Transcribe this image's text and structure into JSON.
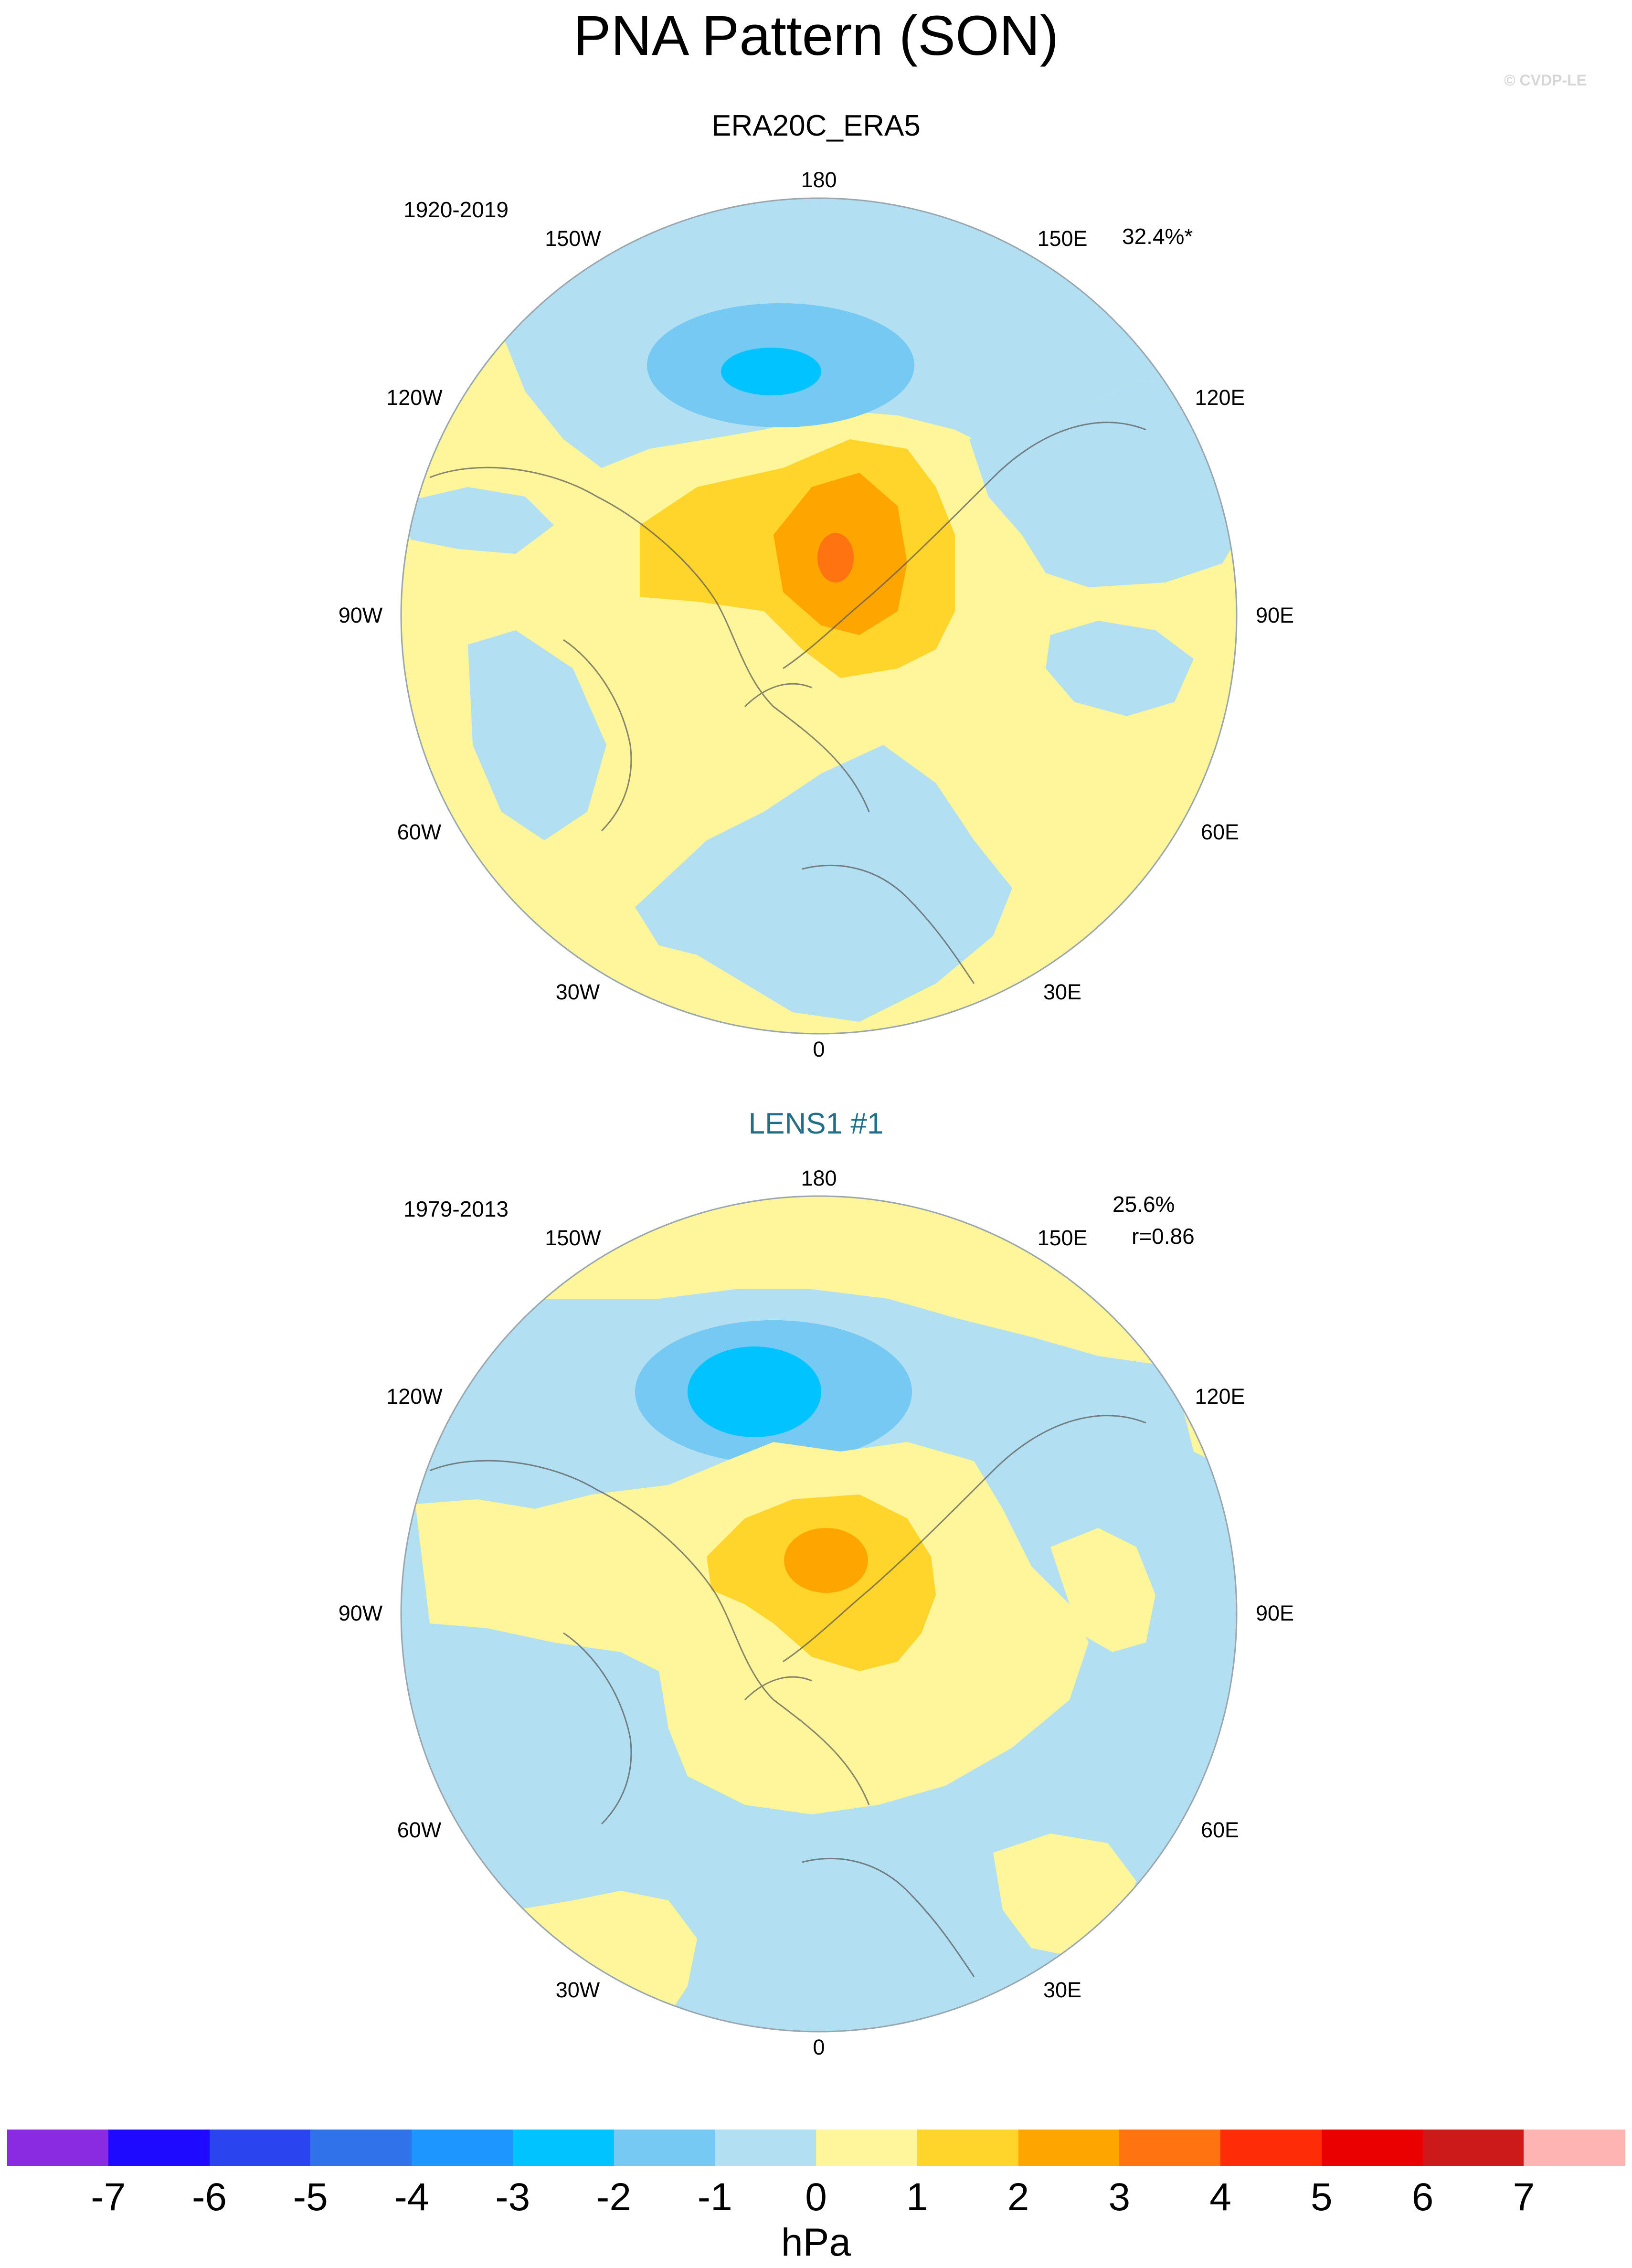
{
  "title": "PNA Pattern (SON)",
  "credit": "© CVDP-LE",
  "panels": [
    {
      "title": "ERA20C_ERA5",
      "period": "1920-2019",
      "stats": [
        "32.4%*"
      ],
      "longitude_labels": [
        "180",
        "150E",
        "120E",
        "90E",
        "60E",
        "30E",
        "0",
        "30W",
        "60W",
        "90W",
        "120W",
        "150W"
      ]
    },
    {
      "title": "LENS1 #1",
      "period": "1979-2013",
      "stats": [
        "25.6%",
        "r=0.86"
      ],
      "longitude_labels": [
        "180",
        "150E",
        "120E",
        "90E",
        "60E",
        "30E",
        "0",
        "30W",
        "60W",
        "90W",
        "120W",
        "150W"
      ]
    }
  ],
  "colorbar": {
    "unit": "hPa",
    "ticks": [
      "-7",
      "-6",
      "-5",
      "-4",
      "-3",
      "-2",
      "-1",
      "0",
      "1",
      "2",
      "3",
      "4",
      "5",
      "6",
      "7"
    ],
    "colors": [
      "#8a2be2",
      "#1e0bff",
      "#2a45f0",
      "#2f72ea",
      "#1e96ff",
      "#00c3ff",
      "#75c9f2",
      "#b3dff3",
      "#fff59b",
      "#ffd42b",
      "#ffa500",
      "#ff7410",
      "#ff2c08",
      "#ea0000",
      "#cc1a1a",
      "#ffb4b4"
    ]
  },
  "map_fields": {
    "ERA20C_ERA5": {
      "levels": [
        "-3 to -2 hPa",
        "-2 to -1 hPa",
        "-1 to 0 hPa",
        "0 to 1 hPa",
        "1 to 2 hPa",
        "2 to 3 hPa",
        "3 to 4 hPa"
      ],
      "colors": {
        "neg_3_2": "#00c3ff",
        "neg_2_1": "#75c9f2",
        "neg_1_0": "#b3dff3",
        "pos_0_1": "#fff59b",
        "pos_1_2": "#ffd42b",
        "pos_2_3": "#ffa500",
        "pos_3_4": "#ff7410"
      }
    },
    "LENS1 #1": {
      "levels": [
        "-3 to -2 hPa",
        "-2 to -1 hPa",
        "-1 to 0 hPa",
        "0 to 1 hPa",
        "1 to 2 hPa",
        "2 to 3 hPa"
      ],
      "colors": {
        "neg_3_2": "#00c3ff",
        "neg_2_1": "#75c9f2",
        "neg_1_0": "#b3dff3",
        "pos_0_1": "#fff59b",
        "pos_1_2": "#ffd42b",
        "pos_2_3": "#ffa500"
      }
    }
  }
}
